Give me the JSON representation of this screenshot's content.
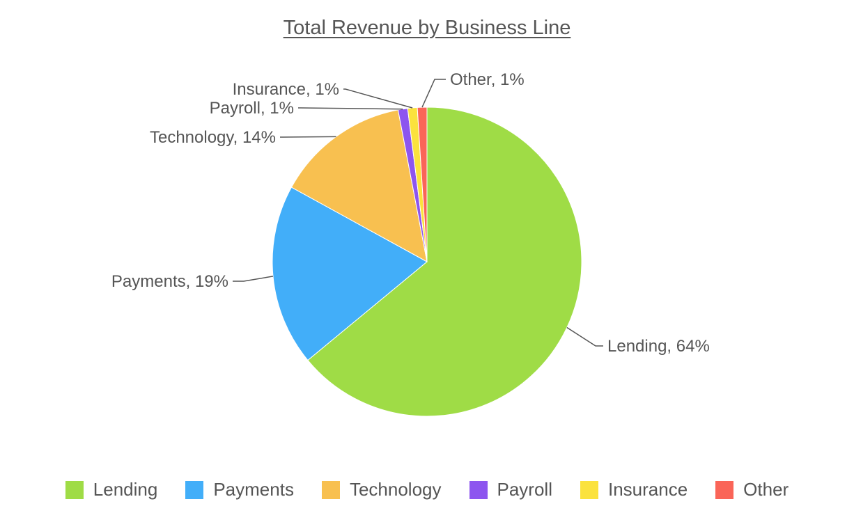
{
  "chart_data": {
    "type": "pie",
    "title": "Total Revenue by Business Line",
    "slices": [
      {
        "label": "Lending",
        "value": 64,
        "color": "#9fdc46",
        "data_label": "Lending, 64%"
      },
      {
        "label": "Payments",
        "value": 19,
        "color": "#42aef9",
        "data_label": "Payments, 19%"
      },
      {
        "label": "Technology",
        "value": 14,
        "color": "#f8c050",
        "data_label": "Technology, 14%"
      },
      {
        "label": "Payroll",
        "value": 1,
        "color": "#8d55ef",
        "data_label": "Payroll, 1%"
      },
      {
        "label": "Insurance",
        "value": 1,
        "color": "#fbe23d",
        "data_label": "Insurance, 1%"
      },
      {
        "label": "Other",
        "value": 1,
        "color": "#fa6558",
        "data_label": "Other, 1%"
      }
    ],
    "legend_position": "bottom"
  }
}
